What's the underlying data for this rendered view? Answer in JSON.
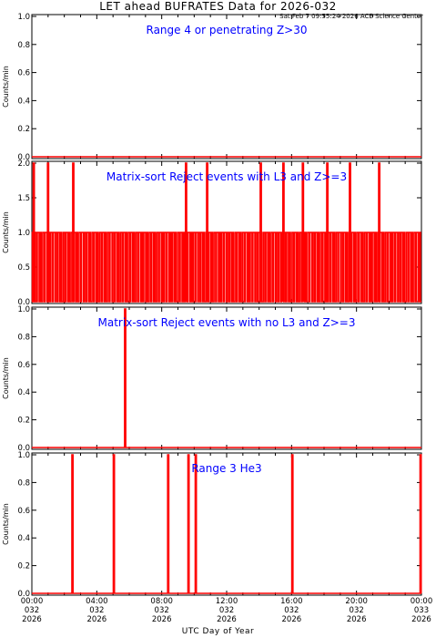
{
  "header": {
    "title": "LET ahead BUFRATES Data for 2026-032",
    "timestamp": "Sat Feb  7 09:55:24 2026 ACE Science Center"
  },
  "chart_data": {
    "type": "line",
    "xlabel": "UTC Day of Year",
    "xlim": [
      0,
      24
    ],
    "xticks": [
      {
        "hour": 0,
        "lines": [
          "00:00",
          "032",
          "2026"
        ]
      },
      {
        "hour": 4,
        "lines": [
          "04:00",
          "032",
          "2026"
        ]
      },
      {
        "hour": 8,
        "lines": [
          "08:00",
          "032",
          "2026"
        ]
      },
      {
        "hour": 12,
        "lines": [
          "12:00",
          "032",
          "2026"
        ]
      },
      {
        "hour": 16,
        "lines": [
          "16:00",
          "032",
          "2026"
        ]
      },
      {
        "hour": 20,
        "lines": [
          "20:00",
          "032",
          "2026"
        ]
      },
      {
        "hour": 24,
        "lines": [
          "00:00",
          "033",
          "2026"
        ]
      }
    ],
    "colors": {
      "series": "#ff0000",
      "label": "#0000ff",
      "axis": "#000000"
    },
    "panels": [
      {
        "label": "Range 4 or  penetrating Z>30",
        "ylabel": "Counts/min",
        "ylim": [
          0,
          1
        ],
        "yticks": [
          "0.0",
          "0.2",
          "0.4",
          "0.6",
          "0.8",
          "1.0"
        ],
        "ytick_values": [
          0,
          0.2,
          0.4,
          0.6,
          0.8,
          1.0
        ],
        "spikes": []
      },
      {
        "label": "Matrix-sort Reject events with L3 and Z>=3",
        "ylabel": "Counts/min",
        "ylim": [
          0,
          2
        ],
        "yticks": [
          "0.0",
          "0.5",
          "1.0",
          "1.5",
          "2.0"
        ],
        "ytick_values": [
          0,
          0.5,
          1.0,
          1.5,
          2.0
        ],
        "dense_level": 1,
        "dense_count": 150,
        "spikes": [
          {
            "hour": 0.12,
            "value": 2
          },
          {
            "hour": 1.0,
            "value": 2
          },
          {
            "hour": 2.55,
            "value": 2
          },
          {
            "hour": 9.5,
            "value": 2
          },
          {
            "hour": 10.8,
            "value": 2
          },
          {
            "hour": 14.1,
            "value": 2
          },
          {
            "hour": 15.5,
            "value": 2
          },
          {
            "hour": 16.7,
            "value": 2
          },
          {
            "hour": 18.2,
            "value": 2
          },
          {
            "hour": 19.6,
            "value": 2
          },
          {
            "hour": 21.4,
            "value": 2
          }
        ]
      },
      {
        "label": "Matrix-sort Reject events with no L3 and Z>=3",
        "ylabel": "Counts/min",
        "ylim": [
          0,
          1
        ],
        "yticks": [
          "0.0",
          "0.2",
          "0.4",
          "0.6",
          "0.8",
          "1.0"
        ],
        "ytick_values": [
          0,
          0.2,
          0.4,
          0.6,
          0.8,
          1.0
        ],
        "spikes": [
          {
            "hour": 5.75,
            "value": 1
          }
        ]
      },
      {
        "label": "Range 3 He3",
        "ylabel": "Counts/min",
        "ylim": [
          0,
          1
        ],
        "yticks": [
          "0.0",
          "0.2",
          "0.4",
          "0.6",
          "0.8",
          "1.0"
        ],
        "ytick_values": [
          0,
          0.2,
          0.4,
          0.6,
          0.8,
          1.0
        ],
        "spikes": [
          {
            "hour": 2.5,
            "value": 1
          },
          {
            "hour": 5.05,
            "value": 1
          },
          {
            "hour": 8.4,
            "value": 1
          },
          {
            "hour": 9.65,
            "value": 1
          },
          {
            "hour": 10.1,
            "value": 1
          },
          {
            "hour": 16.05,
            "value": 1
          },
          {
            "hour": 23.95,
            "value": 1
          }
        ]
      }
    ]
  }
}
